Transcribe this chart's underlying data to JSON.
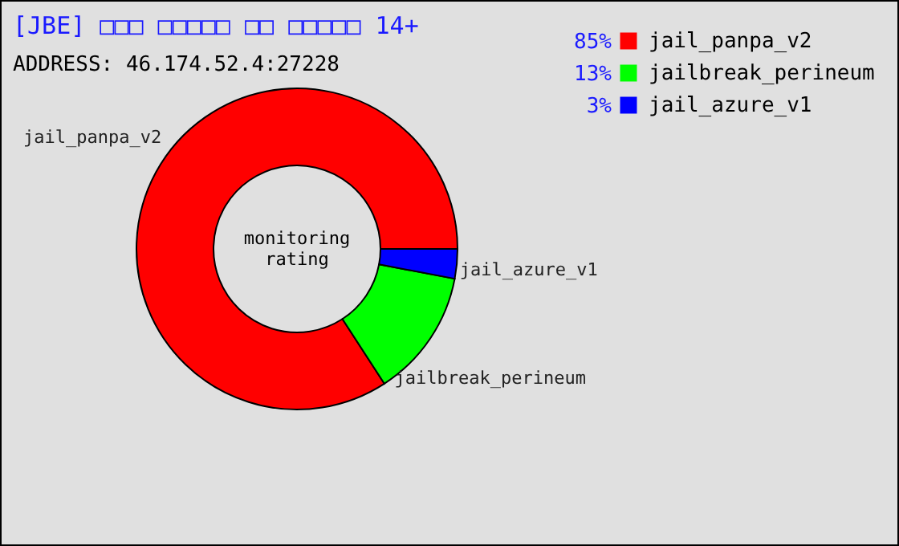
{
  "chart_data": {
    "type": "donut",
    "title": "[JBE] □□□ □□□□□ □□ □□□□□ 14+",
    "categories": [
      "jail_panpa_v2",
      "jailbreak_perineum",
      "jail_azure_v1"
    ],
    "values": [
      85,
      13,
      3
    ],
    "colors": [
      "#ff0000",
      "#00ff00",
      "#0000ff"
    ],
    "value_labels": [
      "85%",
      "13%",
      "3%"
    ],
    "legend": "top right",
    "annotations": [
      "ADDRESS: 46.174.52.4:27228",
      "monitoring rating"
    ]
  }
}
